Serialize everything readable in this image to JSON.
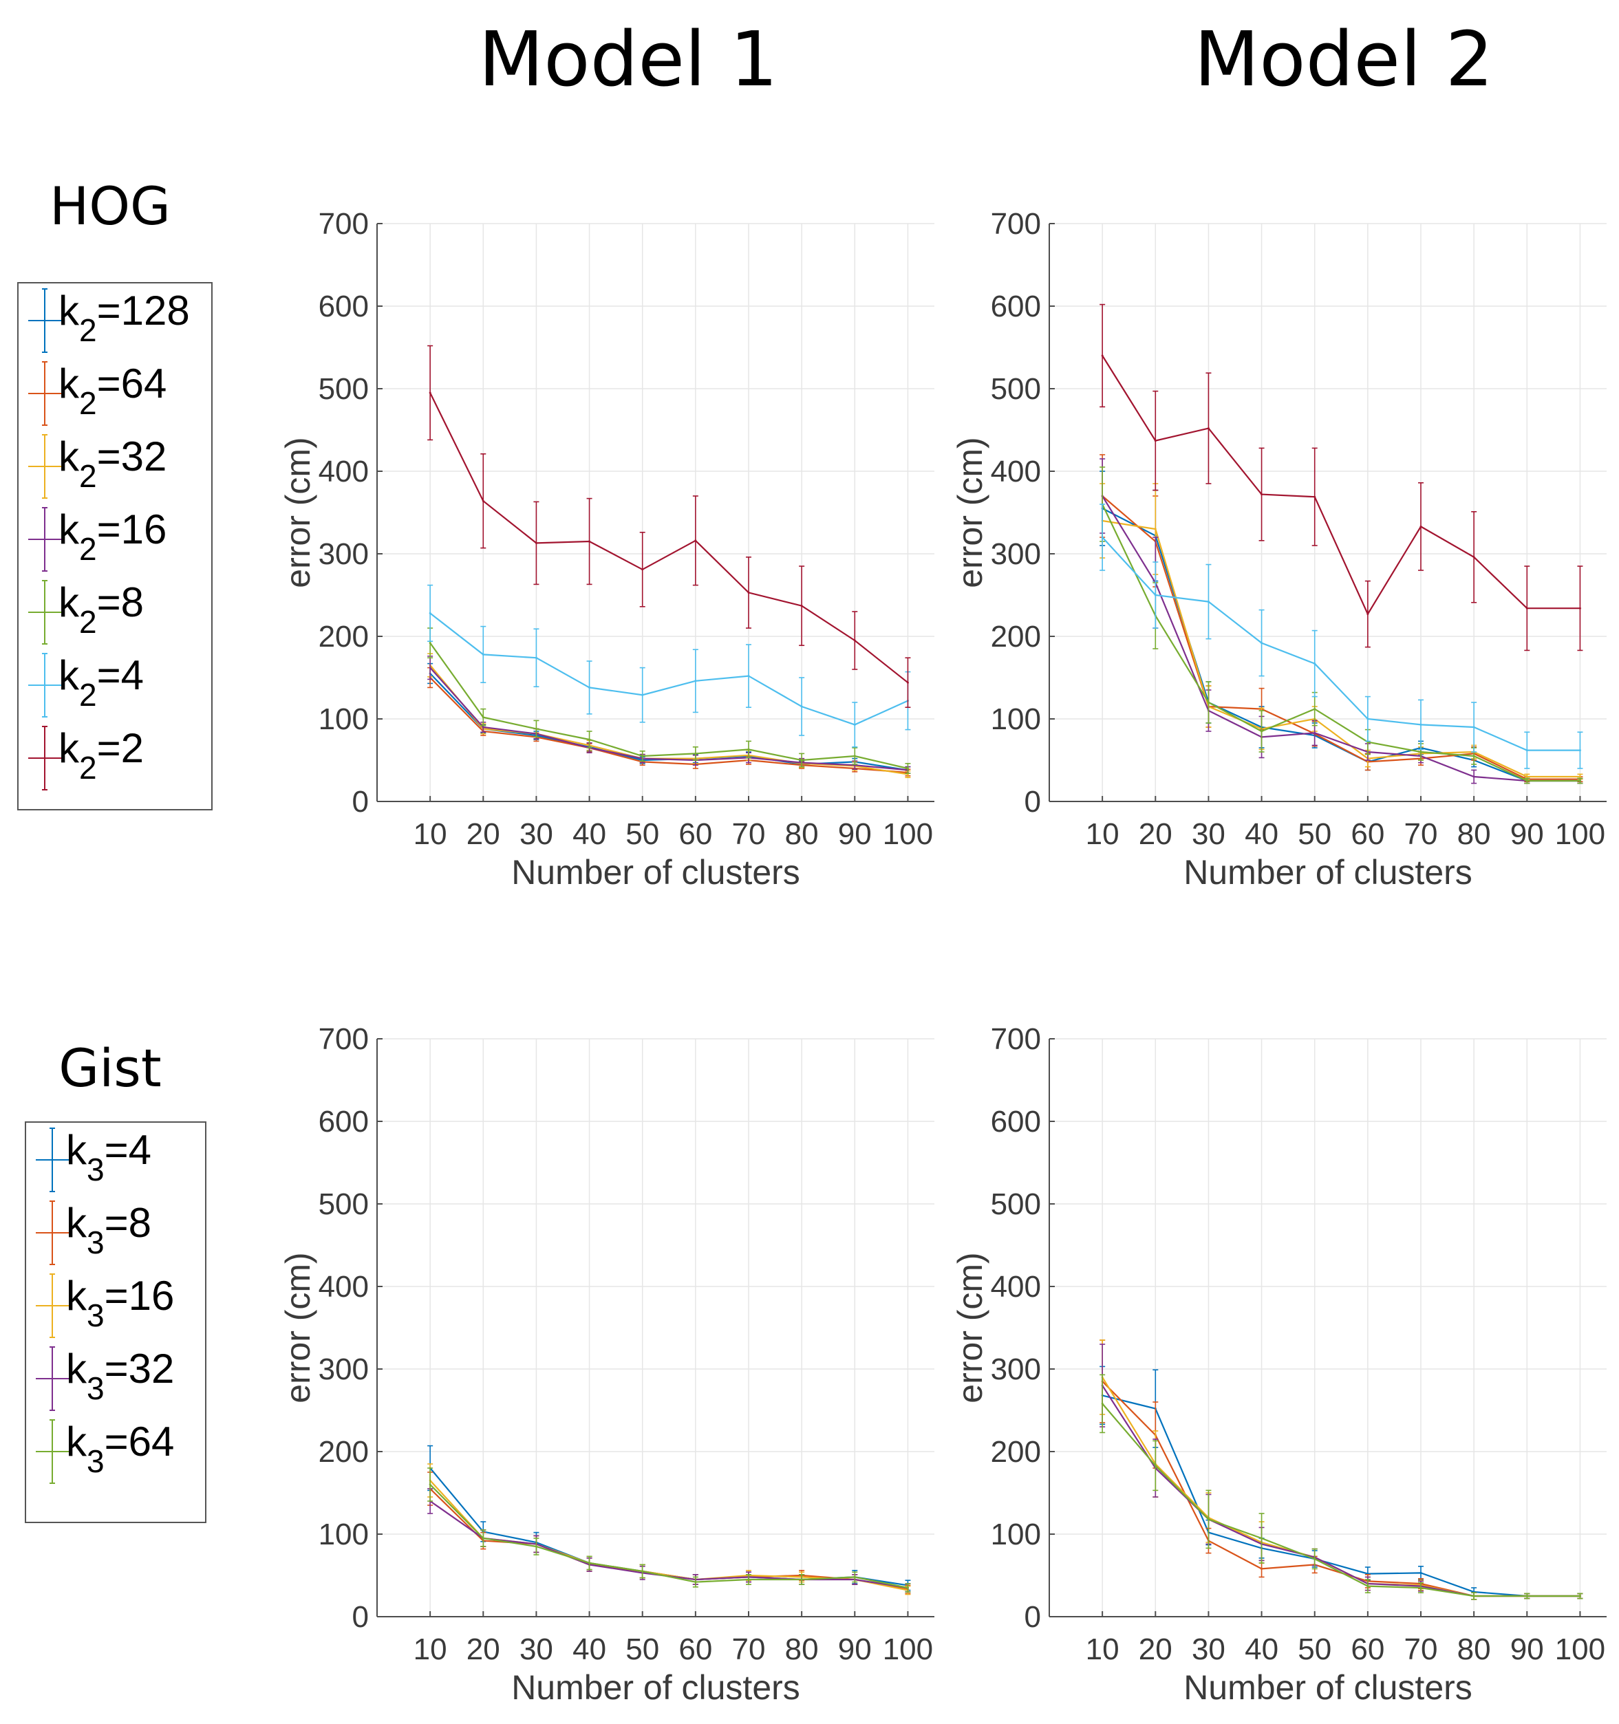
{
  "columns": {
    "model1": "Model 1",
    "model2": "Model 2"
  },
  "rows": {
    "hog": "HOG",
    "gist": "Gist"
  },
  "legends": {
    "hog": [
      {
        "base": "k",
        "sub": "2",
        "suffix": "=128",
        "color": "#0072BD"
      },
      {
        "base": "k",
        "sub": "2",
        "suffix": "=64",
        "color": "#D95319"
      },
      {
        "base": "k",
        "sub": "2",
        "suffix": "=32",
        "color": "#EDB120"
      },
      {
        "base": "k",
        "sub": "2",
        "suffix": "=16",
        "color": "#7E2F8E"
      },
      {
        "base": "k",
        "sub": "2",
        "suffix": "=8",
        "color": "#77AC30"
      },
      {
        "base": "k",
        "sub": "2",
        "suffix": "=4",
        "color": "#4DBEEE"
      },
      {
        "base": "k",
        "sub": "2",
        "suffix": "=2",
        "color": "#A2142F"
      }
    ],
    "gist": [
      {
        "base": "k",
        "sub": "3",
        "suffix": "=4",
        "color": "#0072BD"
      },
      {
        "base": "k",
        "sub": "3",
        "suffix": "=8",
        "color": "#D95319"
      },
      {
        "base": "k",
        "sub": "3",
        "suffix": "=16",
        "color": "#EDB120"
      },
      {
        "base": "k",
        "sub": "3",
        "suffix": "=32",
        "color": "#7E2F8E"
      },
      {
        "base": "k",
        "sub": "3",
        "suffix": "=64",
        "color": "#77AC30"
      }
    ]
  },
  "chart_data": [
    {
      "id": "hog-model1",
      "type": "line",
      "title": "",
      "xlabel": "Number of clusters",
      "ylabel": "error (cm)",
      "x": [
        10,
        20,
        30,
        40,
        50,
        60,
        70,
        80,
        90,
        100
      ],
      "xlim": [
        0,
        105
      ],
      "ylim": [
        0,
        700
      ],
      "xticks": [
        10,
        20,
        30,
        40,
        50,
        60,
        70,
        80,
        90,
        100
      ],
      "yticks": [
        0,
        100,
        200,
        300,
        400,
        500,
        600,
        700
      ],
      "grid": true,
      "series": [
        {
          "name": "k2=128",
          "color": "#0072BD",
          "values": [
            155,
            88,
            80,
            66,
            50,
            52,
            55,
            45,
            48,
            38
          ],
          "err": [
            12,
            5,
            5,
            5,
            4,
            5,
            5,
            4,
            4,
            4
          ]
        },
        {
          "name": "k2=64",
          "color": "#D95319",
          "values": [
            150,
            85,
            78,
            65,
            48,
            45,
            50,
            44,
            40,
            35
          ],
          "err": [
            12,
            5,
            5,
            5,
            4,
            5,
            5,
            4,
            4,
            4
          ]
        },
        {
          "name": "k2=32",
          "color": "#EDB120",
          "values": [
            165,
            88,
            82,
            68,
            52,
            52,
            56,
            46,
            43,
            33
          ],
          "err": [
            14,
            6,
            6,
            6,
            5,
            6,
            6,
            5,
            5,
            4
          ]
        },
        {
          "name": "k2=16",
          "color": "#7E2F8E",
          "values": [
            162,
            90,
            82,
            65,
            52,
            50,
            53,
            47,
            44,
            38
          ],
          "err": [
            14,
            6,
            6,
            6,
            5,
            6,
            6,
            5,
            5,
            4
          ]
        },
        {
          "name": "k2=8",
          "color": "#77AC30",
          "values": [
            192,
            102,
            88,
            75,
            55,
            58,
            63,
            50,
            55,
            40
          ],
          "err": [
            18,
            10,
            10,
            10,
            6,
            8,
            10,
            8,
            10,
            6
          ]
        },
        {
          "name": "k2=4",
          "color": "#4DBEEE",
          "values": [
            228,
            178,
            174,
            138,
            129,
            146,
            152,
            115,
            93,
            122
          ],
          "err": [
            34,
            34,
            35,
            32,
            33,
            38,
            38,
            35,
            27,
            35
          ]
        },
        {
          "name": "k2=2",
          "color": "#A2142F",
          "values": [
            495,
            364,
            313,
            315,
            281,
            316,
            253,
            237,
            195,
            144
          ],
          "err": [
            57,
            57,
            50,
            52,
            45,
            54,
            43,
            48,
            35,
            30
          ]
        }
      ]
    },
    {
      "id": "hog-model2",
      "type": "line",
      "title": "",
      "xlabel": "Number of clusters",
      "ylabel": "error (cm)",
      "x": [
        10,
        20,
        30,
        40,
        50,
        60,
        70,
        80,
        90,
        100
      ],
      "xlim": [
        0,
        105
      ],
      "ylim": [
        0,
        700
      ],
      "xticks": [
        10,
        20,
        30,
        40,
        50,
        60,
        70,
        80,
        90,
        100
      ],
      "yticks": [
        0,
        100,
        200,
        300,
        400,
        500,
        600,
        700
      ],
      "grid": true,
      "series": [
        {
          "name": "k2=128",
          "color": "#0072BD",
          "values": [
            355,
            322,
            120,
            90,
            80,
            48,
            65,
            50,
            25,
            25
          ],
          "err": [
            45,
            55,
            25,
            25,
            15,
            10,
            8,
            8,
            3,
            3
          ]
        },
        {
          "name": "k2=64",
          "color": "#D95319",
          "values": [
            370,
            315,
            115,
            112,
            82,
            48,
            52,
            58,
            27,
            27
          ],
          "err": [
            50,
            55,
            25,
            25,
            15,
            10,
            8,
            8,
            3,
            3
          ]
        },
        {
          "name": "k2=32",
          "color": "#EDB120",
          "values": [
            340,
            330,
            115,
            88,
            100,
            52,
            58,
            60,
            30,
            30
          ],
          "err": [
            45,
            55,
            25,
            25,
            15,
            10,
            8,
            8,
            3,
            3
          ]
        },
        {
          "name": "k2=16",
          "color": "#7E2F8E",
          "values": [
            370,
            265,
            110,
            78,
            83,
            60,
            55,
            30,
            25,
            25
          ],
          "err": [
            45,
            55,
            25,
            25,
            15,
            10,
            8,
            8,
            3,
            3
          ]
        },
        {
          "name": "k2=8",
          "color": "#77AC30",
          "values": [
            360,
            225,
            120,
            85,
            112,
            72,
            60,
            55,
            25,
            25
          ],
          "err": [
            45,
            40,
            25,
            25,
            20,
            15,
            10,
            10,
            3,
            3
          ]
        },
        {
          "name": "k2=4",
          "color": "#4DBEEE",
          "values": [
            320,
            250,
            242,
            192,
            167,
            100,
            93,
            90,
            62,
            62
          ],
          "err": [
            40,
            40,
            45,
            40,
            40,
            27,
            30,
            30,
            22,
            22
          ]
        },
        {
          "name": "k2=2",
          "color": "#A2142F",
          "values": [
            540,
            437,
            452,
            372,
            369,
            227,
            333,
            296,
            234,
            234
          ],
          "err": [
            62,
            60,
            67,
            56,
            59,
            40,
            53,
            55,
            51,
            51
          ]
        }
      ]
    },
    {
      "id": "gist-model1",
      "type": "line",
      "title": "",
      "xlabel": "Number of clusters",
      "ylabel": "error (cm)",
      "x": [
        10,
        20,
        30,
        40,
        50,
        60,
        70,
        80,
        90,
        100
      ],
      "xlim": [
        0,
        105
      ],
      "ylim": [
        0,
        700
      ],
      "xticks": [
        10,
        20,
        30,
        40,
        50,
        60,
        70,
        80,
        90,
        100
      ],
      "yticks": [
        0,
        100,
        200,
        300,
        400,
        500,
        600,
        700
      ],
      "grid": true,
      "series": [
        {
          "name": "k3=4",
          "color": "#0072BD",
          "values": [
            180,
            103,
            90,
            65,
            55,
            45,
            48,
            45,
            48,
            38
          ],
          "err": [
            27,
            12,
            12,
            8,
            8,
            6,
            6,
            6,
            8,
            6
          ]
        },
        {
          "name": "k3=8",
          "color": "#D95319",
          "values": [
            155,
            92,
            88,
            63,
            55,
            45,
            48,
            50,
            45,
            33
          ],
          "err": [
            20,
            10,
            10,
            8,
            8,
            6,
            6,
            6,
            6,
            5
          ]
        },
        {
          "name": "k3=16",
          "color": "#EDB120",
          "values": [
            165,
            95,
            88,
            65,
            55,
            45,
            50,
            48,
            45,
            32
          ],
          "err": [
            20,
            10,
            10,
            8,
            8,
            6,
            6,
            6,
            6,
            5
          ]
        },
        {
          "name": "k3=32",
          "color": "#7E2F8E",
          "values": [
            140,
            95,
            88,
            63,
            53,
            45,
            48,
            45,
            45,
            35
          ],
          "err": [
            15,
            10,
            10,
            8,
            8,
            6,
            6,
            6,
            6,
            5
          ]
        },
        {
          "name": "k3=64",
          "color": "#77AC30",
          "values": [
            160,
            95,
            85,
            65,
            55,
            42,
            45,
            45,
            48,
            35
          ],
          "err": [
            20,
            10,
            10,
            8,
            8,
            6,
            6,
            6,
            6,
            5
          ]
        }
      ]
    },
    {
      "id": "gist-model2",
      "type": "line",
      "title": "",
      "xlabel": "Number of clusters",
      "ylabel": "error (cm)",
      "x": [
        10,
        20,
        30,
        40,
        50,
        60,
        70,
        80,
        90,
        100
      ],
      "xlim": [
        0,
        105
      ],
      "ylim": [
        0,
        700
      ],
      "xticks": [
        10,
        20,
        30,
        40,
        50,
        60,
        70,
        80,
        90,
        100
      ],
      "yticks": [
        0,
        100,
        200,
        300,
        400,
        500,
        600,
        700
      ],
      "grid": true,
      "series": [
        {
          "name": "k3=4",
          "color": "#0072BD",
          "values": [
            268,
            252,
            102,
            83,
            70,
            52,
            53,
            30,
            25,
            25
          ],
          "err": [
            35,
            47,
            15,
            12,
            10,
            8,
            8,
            5,
            3,
            3
          ]
        },
        {
          "name": "k3=8",
          "color": "#D95319",
          "values": [
            285,
            220,
            92,
            58,
            63,
            43,
            40,
            25,
            25,
            25
          ],
          "err": [
            50,
            40,
            15,
            10,
            10,
            8,
            6,
            4,
            3,
            3
          ]
        },
        {
          "name": "k3=16",
          "color": "#EDB120",
          "values": [
            290,
            185,
            120,
            90,
            72,
            40,
            38,
            25,
            25,
            25
          ],
          "err": [
            45,
            40,
            30,
            25,
            10,
            8,
            6,
            4,
            3,
            3
          ]
        },
        {
          "name": "k3=32",
          "color": "#7E2F8E",
          "values": [
            280,
            180,
            118,
            88,
            72,
            40,
            37,
            25,
            25,
            25
          ],
          "err": [
            50,
            35,
            30,
            20,
            10,
            8,
            6,
            4,
            3,
            3
          ]
        },
        {
          "name": "k3=64",
          "color": "#77AC30",
          "values": [
            258,
            183,
            118,
            95,
            70,
            37,
            35,
            25,
            25,
            25
          ],
          "err": [
            35,
            30,
            35,
            30,
            12,
            8,
            6,
            4,
            3,
            3
          ]
        }
      ]
    }
  ]
}
